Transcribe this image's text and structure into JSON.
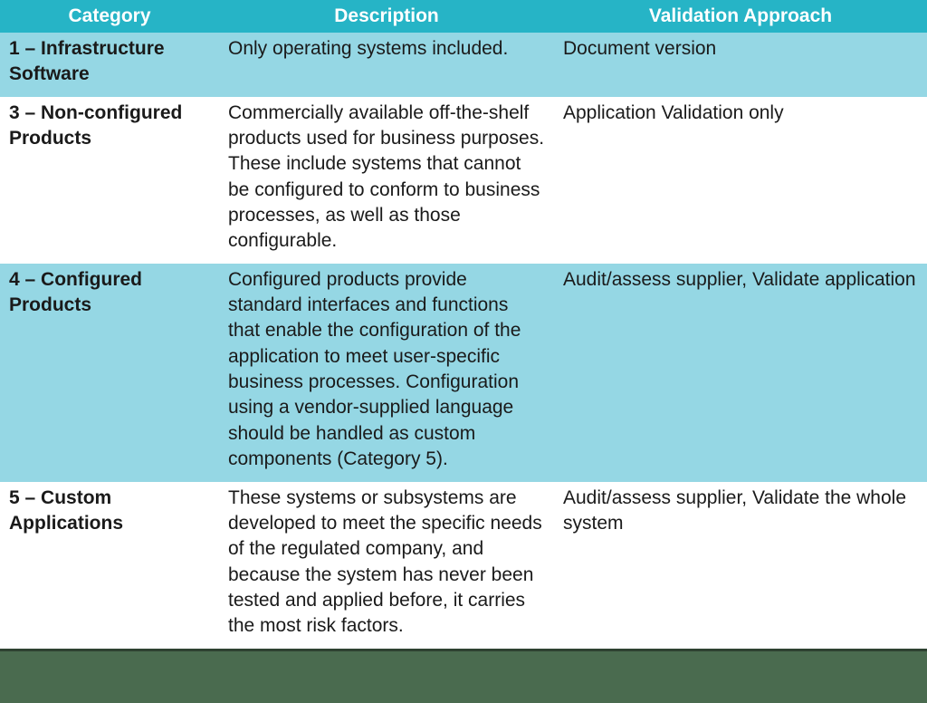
{
  "table": {
    "header_bg": "#26b4c6",
    "header_color": "#ffffff",
    "row_blue_bg": "#95d7e4",
    "row_white_bg": "#ffffff",
    "footer_bg": "#4a6b4f",
    "columns": [
      {
        "key": "category",
        "label": "Category"
      },
      {
        "key": "description",
        "label": "Description"
      },
      {
        "key": "approach",
        "label": "Validation Approach"
      }
    ],
    "rows": [
      {
        "band": "blue",
        "category": "1 – Infrastructure Software",
        "description": "Only operating systems included.",
        "approach": "Document version"
      },
      {
        "band": "white",
        "category": "3 – Non-configured Products",
        "description": "Commercially available off-the-shelf products used for business purposes. These include systems that cannot be configured to conform to business processes, as well as those configurable.",
        "approach": "Application Validation only"
      },
      {
        "band": "blue",
        "category": "4 – Configured Products",
        "description": "Configured products provide standard interfaces and functions that enable the configuration of the application to meet user-specific business processes. Configuration using a vendor-supplied language should be handled as custom components (Category 5).",
        "approach": "Audit/assess supplier, Validate application"
      },
      {
        "band": "white",
        "category": "5 – Custom Applications",
        "description": "These systems or subsystems are developed to meet the specific needs of the regulated company, and because the system has never been tested and applied before, it carries the most risk factors.",
        "approach": "Audit/assess supplier, Validate the whole system"
      }
    ]
  }
}
